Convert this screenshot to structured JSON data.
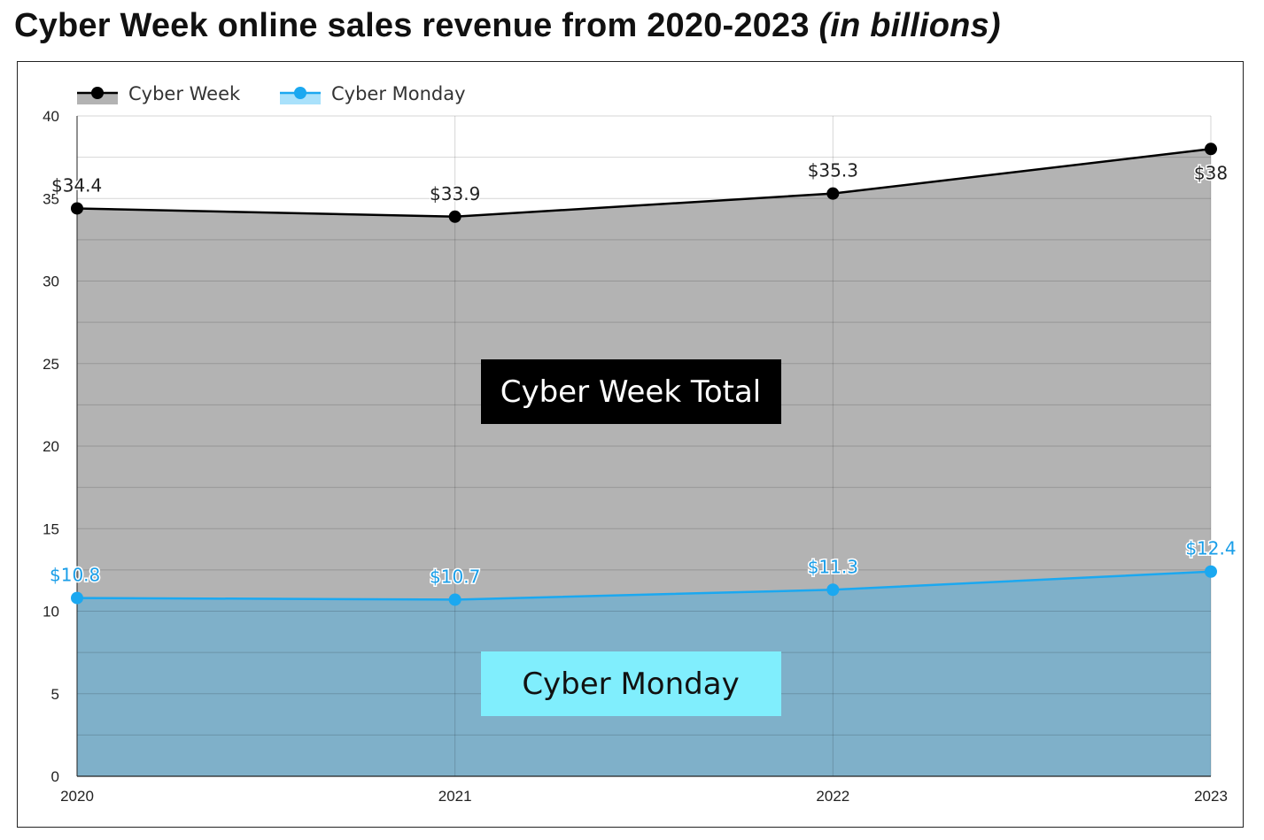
{
  "title": {
    "main": "Cyber Week online sales revenue from 2020-2023",
    "italic": "(in billions)"
  },
  "colors": {
    "cyber_week_line": "#000000",
    "cyber_week_fill": "#b3b3b3",
    "cyber_monday_line": "#1ba8f0",
    "cyber_monday_fill": "#7fb0c9",
    "cyber_monday_label": "#1a9ee8",
    "annot_week_bg": "#000000",
    "annot_monday_bg": "#80eefd"
  },
  "chart_data": {
    "type": "area",
    "title": "Cyber Week online sales revenue from 2020-2023 (in billions)",
    "categories": [
      "2020",
      "2021",
      "2022",
      "2023"
    ],
    "series": [
      {
        "name": "Cyber Week",
        "values": [
          34.4,
          33.9,
          35.3,
          38
        ],
        "labels": [
          "$34.4",
          "$33.9",
          "$35.3",
          "$38"
        ]
      },
      {
        "name": "Cyber Monday",
        "values": [
          10.8,
          10.7,
          11.3,
          12.4
        ],
        "labels": [
          "$10.8",
          "$10.7",
          "$11.3",
          "$12.4"
        ]
      }
    ],
    "ylim": [
      0,
      40
    ],
    "yticks": [
      0,
      5,
      10,
      15,
      20,
      25,
      30,
      35,
      40
    ],
    "grid": true,
    "legend": "top-left",
    "annotations": [
      "Cyber Week Total",
      "Cyber Monday"
    ]
  }
}
